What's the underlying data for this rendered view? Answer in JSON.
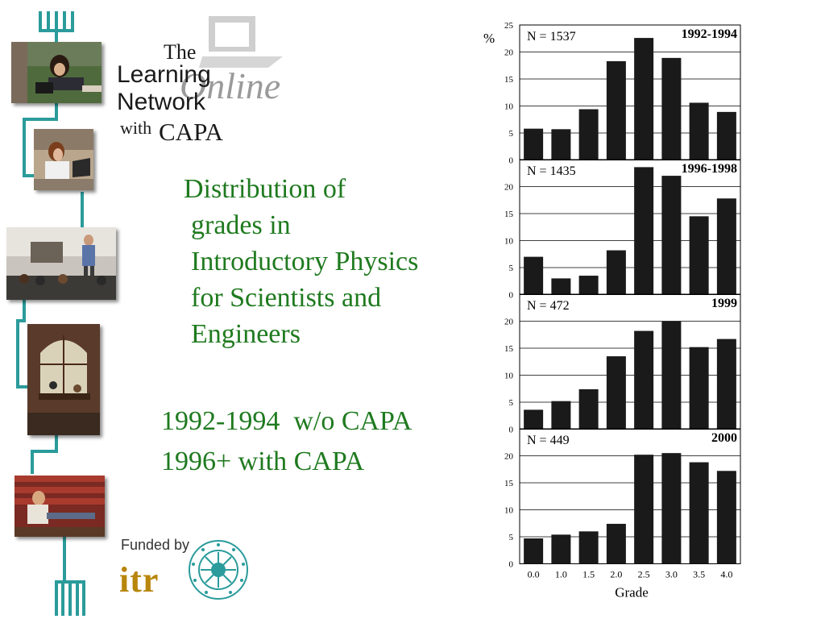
{
  "logo": {
    "the": "The",
    "learning": "Learning",
    "network": "Network",
    "with": "with",
    "capa": "CAPA",
    "online": "Online"
  },
  "title_lines": [
    "Distribution of",
    "grades in",
    "Introductory Physics",
    "for Scientists and",
    "Engineers"
  ],
  "caption_lines": [
    "1992-1994  w/o CAPA",
    "1996+ with CAPA"
  ],
  "funding": {
    "label": "Funded by",
    "itr": "itr",
    "seal_icon": "nsf-seal-icon"
  },
  "colors": {
    "title_green": "#1f7a1f",
    "teal": "#2b9b9b",
    "bar": "#1a1a1a",
    "itr_gold": "#b8860b"
  },
  "chart_data": [
    {
      "type": "bar",
      "title": "1992-1994",
      "n_label": "N = 1537",
      "ylabel": "%",
      "ylim": [
        0,
        25
      ],
      "yticks": [
        "0",
        "5",
        "10",
        "15",
        "20",
        "25"
      ],
      "categories": [
        "0.0",
        "1.0",
        "1.5",
        "2.0",
        "2.5",
        "3.0",
        "3.5",
        "4.0"
      ],
      "values": [
        5.8,
        5.7,
        9.4,
        18.3,
        22.6,
        18.9,
        10.6,
        8.9
      ]
    },
    {
      "type": "bar",
      "title": "1996-1998",
      "n_label": "N = 1435",
      "ylim": [
        0,
        25
      ],
      "yticks": [
        "0",
        "5",
        "10",
        "15",
        "20"
      ],
      "categories": [
        "0.0",
        "1.0",
        "1.5",
        "2.0",
        "2.5",
        "3.0",
        "3.5",
        "4.0"
      ],
      "values": [
        7.0,
        3.0,
        3.5,
        8.2,
        23.6,
        22.0,
        14.5,
        17.8
      ]
    },
    {
      "type": "bar",
      "title": "1999",
      "n_label": "N = 472",
      "ylim": [
        0,
        25
      ],
      "yticks": [
        "0",
        "5",
        "10",
        "15",
        "20"
      ],
      "categories": [
        "0.0",
        "1.0",
        "1.5",
        "2.0",
        "2.5",
        "3.0",
        "3.5",
        "4.0"
      ],
      "values": [
        3.6,
        5.2,
        7.4,
        13.5,
        18.2,
        20.0,
        15.2,
        16.7
      ]
    },
    {
      "type": "bar",
      "title": "2000",
      "n_label": "N = 449",
      "ylim": [
        0,
        25
      ],
      "yticks": [
        "0",
        "5",
        "10",
        "15",
        "20"
      ],
      "categories": [
        "0.0",
        "1.0",
        "1.5",
        "2.0",
        "2.5",
        "3.0",
        "3.5",
        "4.0"
      ],
      "values": [
        4.7,
        5.4,
        6.0,
        7.4,
        20.2,
        20.5,
        18.8,
        17.2
      ],
      "xlabel": "Grade"
    }
  ]
}
